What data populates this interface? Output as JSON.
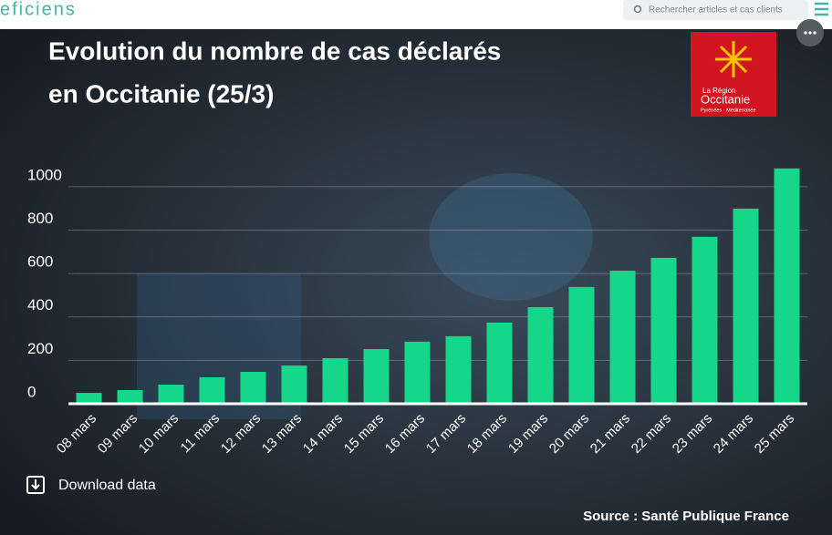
{
  "header": {
    "logo": "eficiens",
    "search_placeholder": "Rechercher articles et cas clients"
  },
  "badge": {
    "line1": "La Région",
    "line2": "Occitanie",
    "line3": "Pyrénées · Méditerranée"
  },
  "download": "Download data",
  "chart_data": {
    "type": "bar",
    "title": [
      "Evolution du nombre de cas déclarés",
      "en Occitanie (25/3)"
    ],
    "source": "Source : Santé Publique France",
    "categories": [
      "08 mars",
      "09 mars",
      "10 mars",
      "11 mars",
      "12 mars",
      "13 mars",
      "14 mars",
      "15 mars",
      "16 mars",
      "17 mars",
      "18 mars",
      "19 mars",
      "20 mars",
      "21 mars",
      "22 mars",
      "23 mars",
      "24 mars",
      "25 mars"
    ],
    "values": [
      50,
      63,
      88,
      122,
      147,
      176,
      210,
      252,
      286,
      311,
      374,
      445,
      538,
      613,
      672,
      769,
      899,
      1084
    ],
    "color": "#16d68a",
    "ylim": [
      0,
      1100
    ],
    "yticks": [
      0,
      200,
      400,
      600,
      800,
      1000
    ],
    "grid": true
  }
}
